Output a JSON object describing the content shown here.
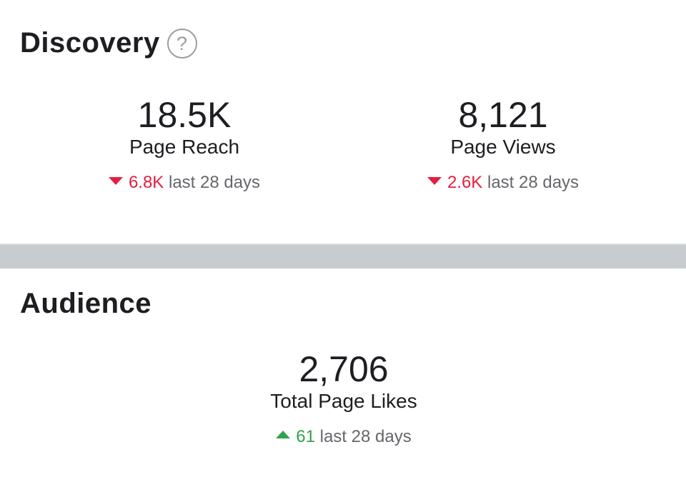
{
  "discovery": {
    "title": "Discovery",
    "help_icon": "question-circle-icon",
    "metrics": [
      {
        "value": "18.5K",
        "label": "Page Reach",
        "change": "6.8K",
        "direction": "down",
        "period": "last 28 days"
      },
      {
        "value": "8,121",
        "label": "Page Views",
        "change": "2.6K",
        "direction": "down",
        "period": "last 28 days"
      }
    ]
  },
  "audience": {
    "title": "Audience",
    "metrics": [
      {
        "value": "2,706",
        "label": "Total Page Likes",
        "change": "61",
        "direction": "up",
        "period": "last 28 days"
      }
    ]
  },
  "colors": {
    "negative": "#e41e3f",
    "positive": "#31a24c",
    "divider": "#c8cbcf"
  }
}
